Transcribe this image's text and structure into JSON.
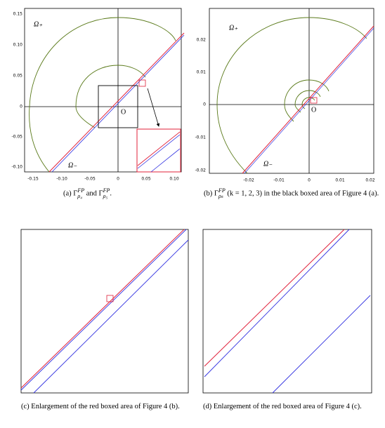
{
  "figure_a": {
    "x_ticks": [
      "-0.15",
      "-0.10",
      "-0.05",
      "0",
      "0.05",
      "0.10"
    ],
    "y_ticks": [
      "0.15",
      "0.10",
      "0.05",
      "0",
      "-0.05",
      "-0.10"
    ],
    "omega_plus": "Ω₊",
    "omega_minus": "Ω₋",
    "origin": "O",
    "caption": {
      "t1": "(a) Γ",
      "sup1": "FP",
      "sub1": "ρ₄",
      "t2": " and Γ",
      "sup2": "FP",
      "sub2": "ρ₅",
      "t3": "."
    }
  },
  "figure_b": {
    "x_ticks": [
      "-0.02",
      "-0.01",
      "0",
      "0.01",
      "0.02"
    ],
    "y_ticks": [
      "0.02",
      "0.01",
      "0",
      "-0.01",
      "-0.02"
    ],
    "omega_plus": "Ω₊",
    "omega_minus": "Ω₋",
    "origin": "O",
    "caption": {
      "t1": "(b) Γ",
      "sup1": "FP",
      "sub1": "ρₖ",
      "t2": " (k = 1, 2, 3) in the black boxed area of Figure 4 (a)."
    }
  },
  "figure_c": {
    "caption": "(c) Enlargement of the red boxed area of Figure 4 (b)."
  },
  "figure_d": {
    "caption": "(d) Enlargement of the red boxed area of Figure 4 (c)."
  }
}
